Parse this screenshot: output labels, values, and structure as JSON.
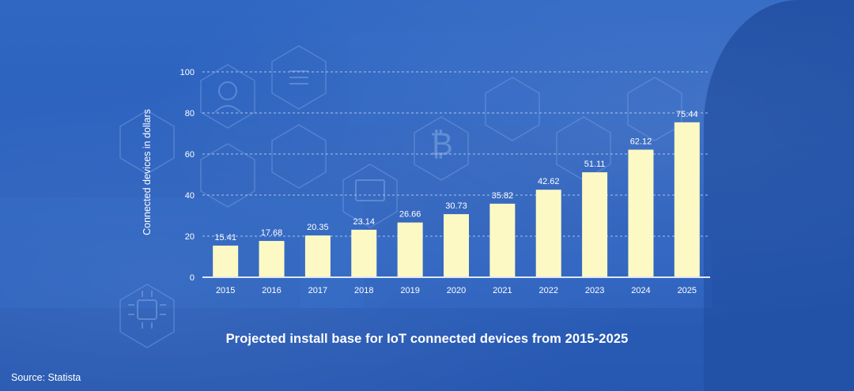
{
  "chart_data": {
    "type": "bar",
    "title": "Projected install base for IoT connected devices from 2015-2025",
    "xlabel": "",
    "ylabel": "Connected devices in dollars",
    "categories": [
      "2015",
      "2016",
      "2017",
      "2018",
      "2019",
      "2020",
      "2021",
      "2022",
      "2023",
      "2024",
      "2025"
    ],
    "values": [
      15.41,
      17.68,
      20.35,
      23.14,
      26.66,
      30.73,
      35.82,
      42.62,
      51.11,
      62.12,
      75.44
    ],
    "data_labels": [
      "15.41",
      "17.68",
      "20.35",
      "23.14",
      "26.66",
      "30.73",
      "35.82",
      "42.62",
      "51.11",
      "62.12",
      "75.44"
    ],
    "ylim": [
      0,
      100
    ],
    "yticks": [
      "0",
      "20",
      "40",
      "60",
      "80",
      "100"
    ],
    "ytick_values": [
      0,
      20,
      40,
      60,
      80,
      100
    ],
    "grid": true,
    "bar_color": "#fdf9c4",
    "grid_color": "#a9c2ea",
    "axis_color": "#dfe8f8",
    "text_color": "#ffffff"
  },
  "source": "Source: Statista"
}
